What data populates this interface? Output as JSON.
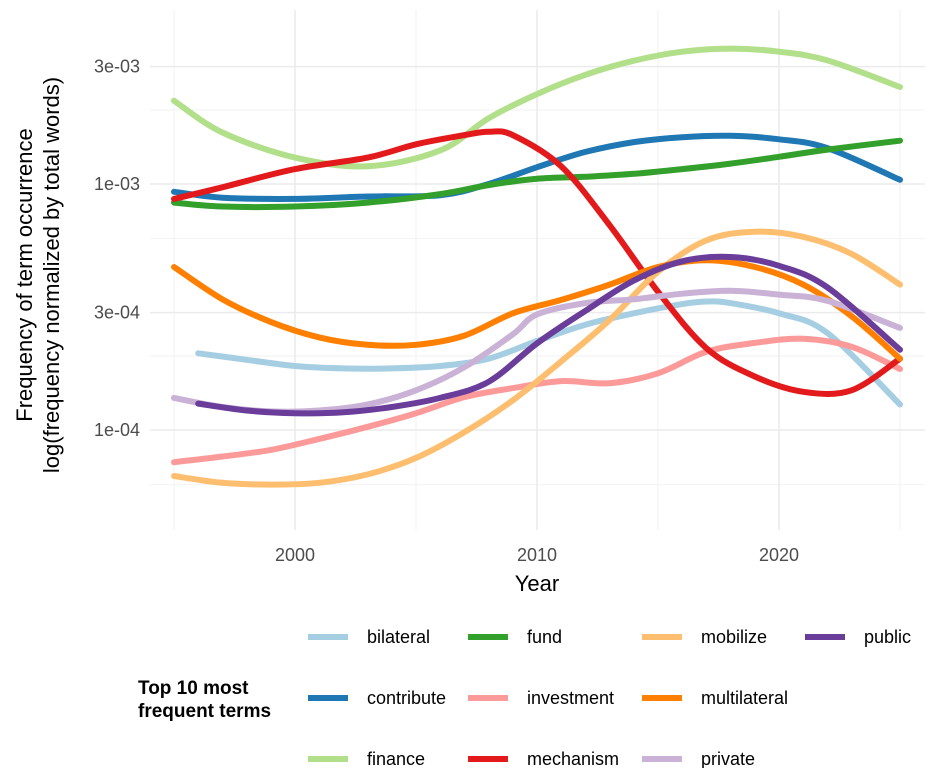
{
  "chart_data": {
    "type": "line",
    "xlabel": "Year",
    "ylabel_line1": "Frequency of term occurrence",
    "ylabel_line2": "log(frequency normalized by total words)",
    "y_scale": "log10",
    "xlim": [
      1995,
      2025
    ],
    "ylim": [
      4.2e-05,
      0.0045
    ],
    "x_ticks": [
      2000,
      2010,
      2020
    ],
    "x_tick_labels": [
      "2000",
      "2010",
      "2020"
    ],
    "y_ticks": [
      0.0001,
      0.0003,
      0.001,
      0.003
    ],
    "y_tick_labels": [
      "1e-04",
      "3e-04",
      "1e-03",
      "3e-03"
    ],
    "y_minor_ticks": [
      6e-05,
      0.0002,
      0.0006,
      0.002
    ],
    "grid": true,
    "legend": {
      "title": "Top 10 most frequent terms",
      "position": "bottom"
    },
    "series": [
      {
        "name": "bilateral",
        "color": "#a6cee3",
        "x": [
          1996,
          1998,
          2000,
          2002,
          2004,
          2006,
          2008,
          2010,
          2012,
          2014,
          2016,
          2017,
          2018,
          2020,
          2022,
          2025
        ],
        "y": [
          0.000205,
          0.000193,
          0.000182,
          0.000178,
          0.000178,
          0.000182,
          0.000195,
          0.00023,
          0.000268,
          0.000298,
          0.000325,
          0.000333,
          0.000328,
          0.000298,
          0.000248,
          0.000127
        ]
      },
      {
        "name": "contribute",
        "color": "#1f78b4",
        "x": [
          1995,
          1997,
          2000,
          2003,
          2006,
          2008,
          2010,
          2012,
          2014,
          2016,
          2018,
          2020,
          2022,
          2025
        ],
        "y": [
          0.00093,
          0.00088,
          0.00087,
          0.00089,
          0.0009,
          0.001,
          0.00117,
          0.00135,
          0.00148,
          0.00155,
          0.00157,
          0.00152,
          0.0014,
          0.00104
        ]
      },
      {
        "name": "finance",
        "color": "#b2df8a",
        "x": [
          1995,
          1997,
          2000,
          2003,
          2006,
          2008,
          2010,
          2012,
          2014,
          2016,
          2018,
          2020,
          2022,
          2025
        ],
        "y": [
          0.00218,
          0.00162,
          0.00128,
          0.00118,
          0.00137,
          0.00185,
          0.00232,
          0.00278,
          0.00317,
          0.00345,
          0.00355,
          0.00345,
          0.00318,
          0.00248
        ]
      },
      {
        "name": "fund",
        "color": "#33a02c",
        "x": [
          1995,
          1997,
          2000,
          2003,
          2006,
          2008,
          2010,
          2012,
          2014,
          2016,
          2018,
          2020,
          2022,
          2025
        ],
        "y": [
          0.00084,
          0.00081,
          0.00081,
          0.00084,
          0.00091,
          0.00099,
          0.00105,
          0.00107,
          0.0011,
          0.00115,
          0.00121,
          0.00129,
          0.00138,
          0.0015
        ]
      },
      {
        "name": "investment",
        "color": "#fb9a99",
        "x": [
          1995,
          1997,
          1999,
          2001,
          2003,
          2005,
          2007,
          2009,
          2011,
          2013,
          2015,
          2017,
          2019,
          2021,
          2023,
          2025
        ],
        "y": [
          7.4e-05,
          7.8e-05,
          8.3e-05,
          9.2e-05,
          0.000103,
          0.000117,
          0.000136,
          0.000148,
          0.000158,
          0.000155,
          0.00017,
          0.000208,
          0.000226,
          0.000235,
          0.000218,
          0.000177
        ]
      },
      {
        "name": "mechanism",
        "color": "#e31a1c",
        "x": [
          1995,
          1997,
          2000,
          2003,
          2005,
          2007,
          2008,
          2009,
          2011,
          2013,
          2015,
          2017,
          2019,
          2021,
          2023,
          2025
        ],
        "y": [
          0.00087,
          0.00097,
          0.00115,
          0.00128,
          0.00145,
          0.00158,
          0.00163,
          0.00158,
          0.00118,
          0.00068,
          0.000365,
          0.000215,
          0.000165,
          0.000143,
          0.000145,
          0.000195
        ]
      },
      {
        "name": "mobilize",
        "color": "#fdbf6f",
        "x": [
          1995,
          1997,
          1999,
          2001,
          2003,
          2005,
          2007,
          2009,
          2011,
          2013,
          2015,
          2017,
          2019,
          2021,
          2023,
          2025
        ],
        "y": [
          6.5e-05,
          6.1e-05,
          6e-05,
          6.1e-05,
          6.6e-05,
          7.7e-05,
          9.8e-05,
          0.000132,
          0.00019,
          0.00028,
          0.00044,
          0.00059,
          0.00064,
          0.00061,
          0.00052,
          0.00039
        ]
      },
      {
        "name": "multilateral",
        "color": "#ff7f00",
        "x": [
          1995,
          1997,
          1999,
          2001,
          2003,
          2005,
          2007,
          2009,
          2011,
          2013,
          2015,
          2017,
          2019,
          2021,
          2023,
          2025
        ],
        "y": [
          0.00046,
          0.00034,
          0.000275,
          0.000238,
          0.000222,
          0.000222,
          0.000242,
          0.000298,
          0.000338,
          0.00039,
          0.00046,
          0.00049,
          0.00046,
          0.00039,
          0.00029,
          0.000195
        ]
      },
      {
        "name": "private",
        "color": "#cab2d6",
        "x": [
          1995,
          1997,
          1999,
          2001,
          2003,
          2005,
          2007,
          2009,
          2010,
          2012,
          2014,
          2016,
          2018,
          2020,
          2022,
          2025
        ],
        "y": [
          0.000135,
          0.000124,
          0.000119,
          0.00012,
          0.000127,
          0.000145,
          0.00018,
          0.000245,
          0.000295,
          0.000328,
          0.00034,
          0.000358,
          0.000368,
          0.000355,
          0.000335,
          0.00026
        ]
      },
      {
        "name": "public",
        "color": "#6a3d9a",
        "x": [
          1996,
          1998,
          2000,
          2002,
          2004,
          2006,
          2008,
          2010,
          2012,
          2014,
          2016,
          2018,
          2020,
          2022,
          2025
        ],
        "y": [
          0.000128,
          0.00012,
          0.000117,
          0.000118,
          0.000124,
          0.000135,
          0.000157,
          0.000225,
          0.000305,
          0.000405,
          0.000485,
          0.000505,
          0.000465,
          0.00038,
          0.000212
        ]
      }
    ],
    "legend_layout": [
      [
        "bilateral",
        "fund",
        "mobilize",
        "public"
      ],
      [
        "contribute",
        "investment",
        "multilateral",
        ""
      ],
      [
        "finance",
        "mechanism",
        "private",
        ""
      ]
    ]
  }
}
